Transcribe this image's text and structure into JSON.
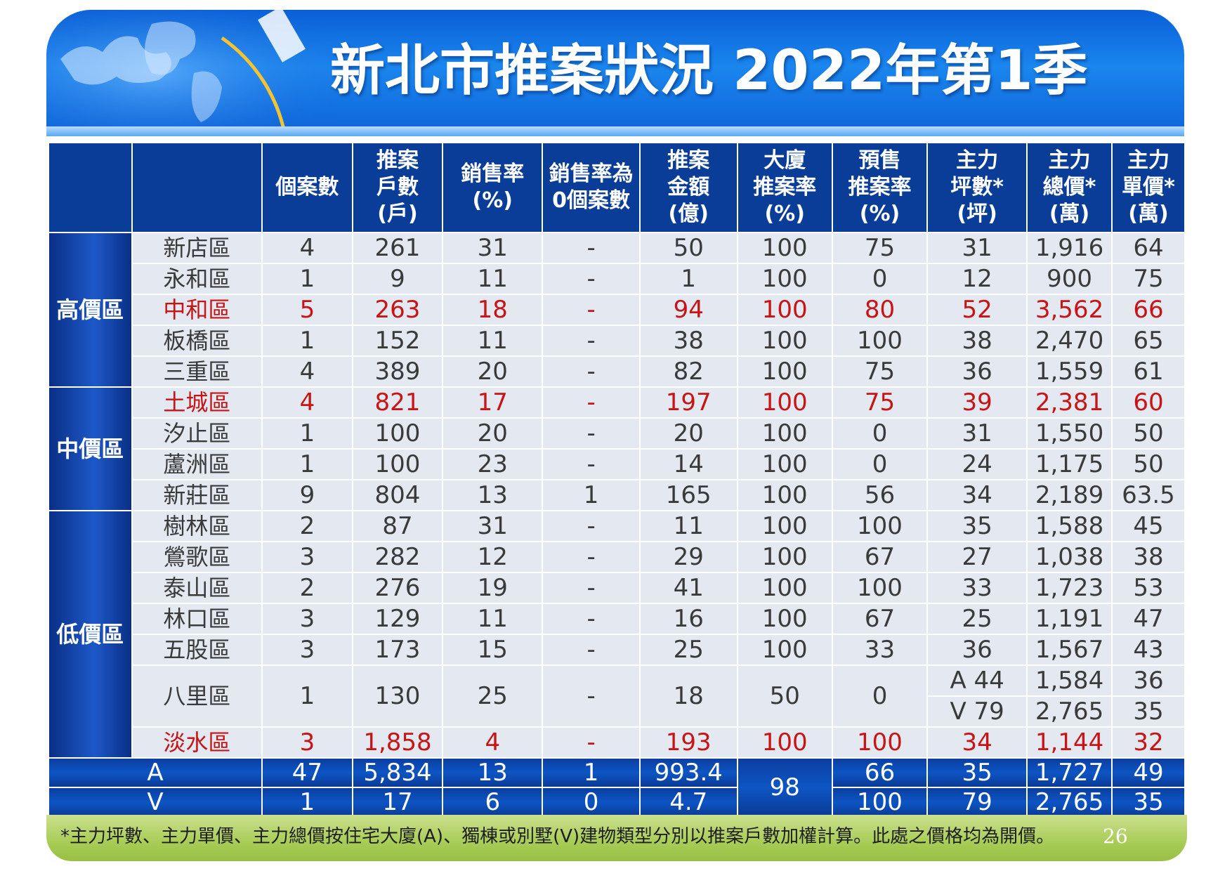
{
  "title": "新北市推案狀況  2022年第1季",
  "header": {
    "columns": [
      {
        "key": "group",
        "lines": []
      },
      {
        "key": "district",
        "lines": []
      },
      {
        "key": "cases",
        "lines": [
          "個案數"
        ]
      },
      {
        "key": "units",
        "lines": [
          "推案",
          "戶數",
          "(戶)"
        ]
      },
      {
        "key": "sales_rate",
        "lines": [
          "銷售率",
          "(%)"
        ]
      },
      {
        "key": "zero_sales",
        "lines": [
          "銷售率為",
          "0個案數"
        ]
      },
      {
        "key": "amount",
        "lines": [
          "推案",
          "金額",
          "(億)"
        ]
      },
      {
        "key": "building_rate",
        "lines": [
          "大廈",
          "推案率",
          "(%)"
        ]
      },
      {
        "key": "presale_rate",
        "lines": [
          "預售",
          "推案率",
          "(%)"
        ]
      },
      {
        "key": "main_ping",
        "lines": [
          "主力",
          "坪數*",
          "(坪)"
        ]
      },
      {
        "key": "main_total",
        "lines": [
          "主力",
          "總價*",
          "(萬)"
        ]
      },
      {
        "key": "main_unit",
        "lines": [
          "主力",
          "單價*",
          "(萬)"
        ]
      }
    ]
  },
  "groups": [
    {
      "name": "高價區",
      "rows": [
        {
          "district": "新店區",
          "cases": "4",
          "units": "261",
          "sales_rate": "31",
          "zero_sales": "-",
          "amount": "50",
          "building_rate": "100",
          "presale_rate": "75",
          "main_ping": "31",
          "main_total": "1,916",
          "main_unit": "64",
          "highlight": false
        },
        {
          "district": "永和區",
          "cases": "1",
          "units": "9",
          "sales_rate": "11",
          "zero_sales": "-",
          "amount": "1",
          "building_rate": "100",
          "presale_rate": "0",
          "main_ping": "12",
          "main_total": "900",
          "main_unit": "75",
          "highlight": false
        },
        {
          "district": "中和區",
          "cases": "5",
          "units": "263",
          "sales_rate": "18",
          "zero_sales": "-",
          "amount": "94",
          "building_rate": "100",
          "presale_rate": "80",
          "main_ping": "52",
          "main_total": "3,562",
          "main_unit": "66",
          "highlight": true
        },
        {
          "district": "板橋區",
          "cases": "1",
          "units": "152",
          "sales_rate": "11",
          "zero_sales": "-",
          "amount": "38",
          "building_rate": "100",
          "presale_rate": "100",
          "main_ping": "38",
          "main_total": "2,470",
          "main_unit": "65",
          "highlight": false
        },
        {
          "district": "三重區",
          "cases": "4",
          "units": "389",
          "sales_rate": "20",
          "zero_sales": "-",
          "amount": "82",
          "building_rate": "100",
          "presale_rate": "75",
          "main_ping": "36",
          "main_total": "1,559",
          "main_unit": "61",
          "highlight": false
        }
      ]
    },
    {
      "name": "中價區",
      "rows": [
        {
          "district": "土城區",
          "cases": "4",
          "units": "821",
          "sales_rate": "17",
          "zero_sales": "-",
          "amount": "197",
          "building_rate": "100",
          "presale_rate": "75",
          "main_ping": "39",
          "main_total": "2,381",
          "main_unit": "60",
          "highlight": true
        },
        {
          "district": "汐止區",
          "cases": "1",
          "units": "100",
          "sales_rate": "20",
          "zero_sales": "-",
          "amount": "20",
          "building_rate": "100",
          "presale_rate": "0",
          "main_ping": "31",
          "main_total": "1,550",
          "main_unit": "50",
          "highlight": false
        },
        {
          "district": "蘆洲區",
          "cases": "1",
          "units": "100",
          "sales_rate": "23",
          "zero_sales": "-",
          "amount": "14",
          "building_rate": "100",
          "presale_rate": "0",
          "main_ping": "24",
          "main_total": "1,175",
          "main_unit": "50",
          "highlight": false
        },
        {
          "district": "新莊區",
          "cases": "9",
          "units": "804",
          "sales_rate": "13",
          "zero_sales": "1",
          "amount": "165",
          "building_rate": "100",
          "presale_rate": "56",
          "main_ping": "34",
          "main_total": "2,189",
          "main_unit": "63.5",
          "highlight": false
        }
      ]
    },
    {
      "name": "低價區",
      "rows": [
        {
          "district": "樹林區",
          "cases": "2",
          "units": "87",
          "sales_rate": "31",
          "zero_sales": "-",
          "amount": "11",
          "building_rate": "100",
          "presale_rate": "100",
          "main_ping": "35",
          "main_total": "1,588",
          "main_unit": "45",
          "highlight": false
        },
        {
          "district": "鶯歌區",
          "cases": "3",
          "units": "282",
          "sales_rate": "12",
          "zero_sales": "-",
          "amount": "29",
          "building_rate": "100",
          "presale_rate": "67",
          "main_ping": "27",
          "main_total": "1,038",
          "main_unit": "38",
          "highlight": false
        },
        {
          "district": "泰山區",
          "cases": "2",
          "units": "276",
          "sales_rate": "19",
          "zero_sales": "-",
          "amount": "41",
          "building_rate": "100",
          "presale_rate": "100",
          "main_ping": "33",
          "main_total": "1,723",
          "main_unit": "53",
          "highlight": false
        },
        {
          "district": "林口區",
          "cases": "3",
          "units": "129",
          "sales_rate": "11",
          "zero_sales": "-",
          "amount": "16",
          "building_rate": "100",
          "presale_rate": "67",
          "main_ping": "25",
          "main_total": "1,191",
          "main_unit": "47",
          "highlight": false
        },
        {
          "district": "五股區",
          "cases": "3",
          "units": "173",
          "sales_rate": "15",
          "zero_sales": "-",
          "amount": "25",
          "building_rate": "100",
          "presale_rate": "33",
          "main_ping": "36",
          "main_total": "1,567",
          "main_unit": "43",
          "highlight": false
        },
        {
          "district": "八里區",
          "cases": "1",
          "units": "130",
          "sales_rate": "25",
          "zero_sales": "-",
          "amount": "18",
          "building_rate": "50",
          "presale_rate": "0",
          "split": [
            {
              "main_ping": "A  44",
              "main_total": "1,584",
              "main_unit": "36"
            },
            {
              "main_ping": "V  79",
              "main_total": "2,765",
              "main_unit": "35"
            }
          ],
          "highlight": false
        },
        {
          "district": "淡水區",
          "cases": "3",
          "units": "1,858",
          "sales_rate": "4",
          "zero_sales": "-",
          "amount": "193",
          "building_rate": "100",
          "presale_rate": "100",
          "main_ping": "34",
          "main_total": "1,144",
          "main_unit": "32",
          "highlight": true
        }
      ]
    }
  ],
  "totals": {
    "building_rate_shared": "98",
    "rows": [
      {
        "label": "A",
        "cases": "47",
        "units": "5,834",
        "sales_rate": "13",
        "zero_sales": "1",
        "amount": "993.4",
        "presale_rate": "66",
        "main_ping": "35",
        "main_total": "1,727",
        "main_unit": "49"
      },
      {
        "label": "V",
        "cases": "1",
        "units": "17",
        "sales_rate": "6",
        "zero_sales": "0",
        "amount": "4.7",
        "presale_rate": "100",
        "main_ping": "79",
        "main_total": "2,765",
        "main_unit": "35"
      }
    ]
  },
  "footnote": "*主力坪數、主力單價、主力總價按住宅大廈(A)、獨棟或別墅(V)建物類型分別以推案戶數加權計算。此處之價格均為開價。",
  "page_number": "26",
  "colors": {
    "header_blue": "#0a3d98",
    "cell_bg": "#e4e8f1",
    "highlight_red": "#c81414",
    "footer_green": "#a8cc56"
  }
}
